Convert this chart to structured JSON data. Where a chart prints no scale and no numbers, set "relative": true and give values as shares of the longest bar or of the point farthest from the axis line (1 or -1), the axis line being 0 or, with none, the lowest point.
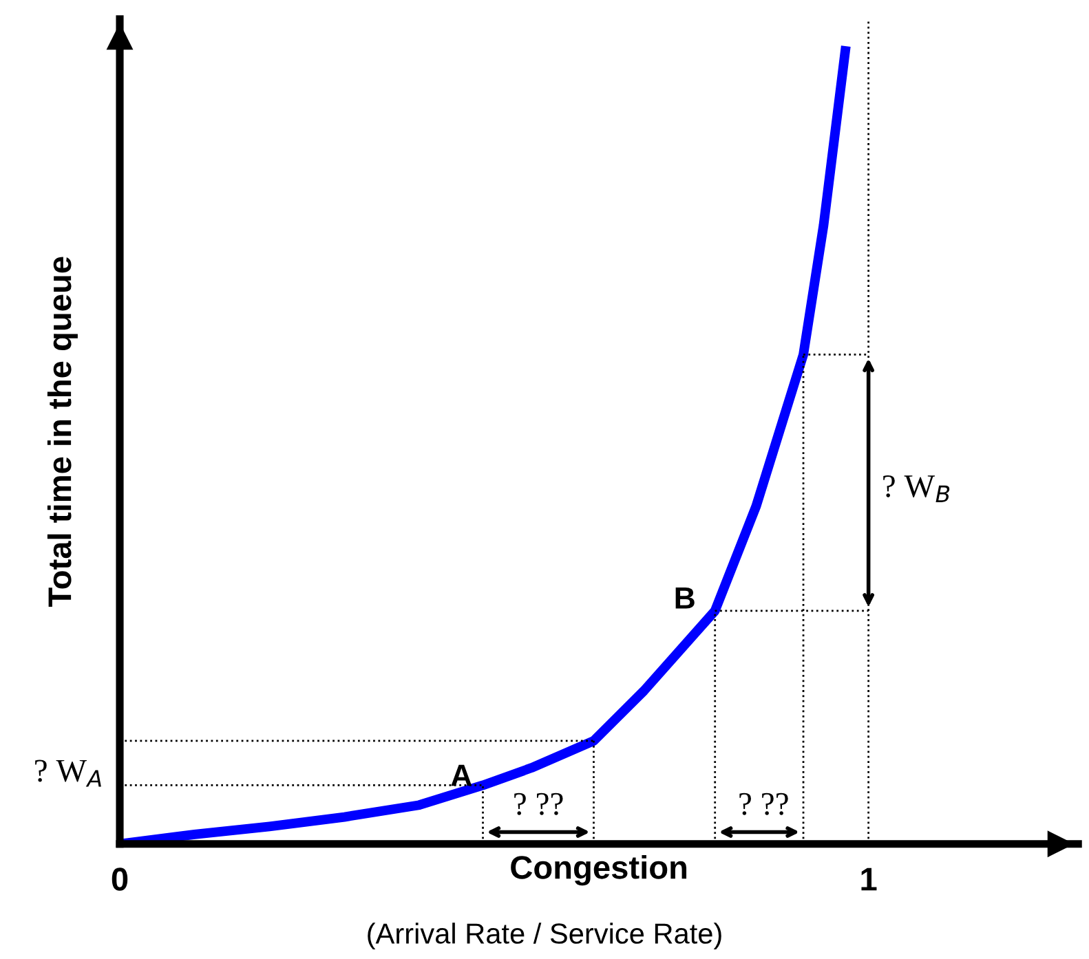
{
  "chart_data": {
    "type": "line",
    "relative": true,
    "ylabel": "Total time in the queue",
    "xlabel": "Congestion",
    "x": [
      0,
      0.1,
      0.2,
      0.3,
      0.4,
      0.485,
      0.55,
      0.633,
      0.7,
      0.795,
      0.85,
      0.913,
      0.94,
      0.969
    ],
    "series": [
      {
        "color": "#0000ff",
        "values": [
          0,
          0.012,
          0.022,
          0.034,
          0.049,
          0.074,
          0.096,
          0.13,
          0.193,
          0.294,
          0.426,
          0.617,
          0.78,
          1.0
        ]
      }
    ],
    "xlim": [
      0,
      1.28
    ],
    "xticks": [
      0,
      1
    ],
    "ref_lines": [
      {
        "axis": "x",
        "value": 1,
        "line_style": "dotted",
        "color": "#000000"
      }
    ],
    "annotations": [
      "? W$_{A}$",
      "? W$_{B}$",
      "? ??",
      "? ??",
      "A",
      "B",
      "(Arrival Rate / Service Rate)"
    ],
    "marker": "none",
    "line_style": "solid"
  }
}
